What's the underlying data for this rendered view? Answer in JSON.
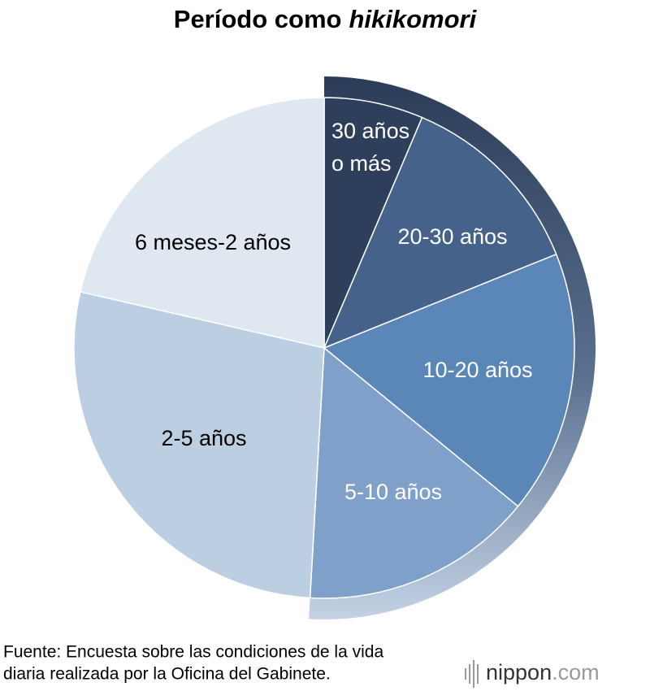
{
  "chart_data": {
    "type": "pie",
    "title": "Período como",
    "title_emphasis": "hikikomori",
    "categories": [
      "30 años\no más",
      "20-30 años",
      "10-20 años",
      "5-10 años",
      "2-5 años",
      "6 meses-2 años"
    ],
    "values": [
      6.4,
      12.5,
      17.0,
      15.0,
      27.7,
      21.4
    ],
    "colors": [
      "#2e3f5c",
      "#45628a",
      "#5b86b8",
      "#7fa0c8",
      "#bccfe2",
      "#dfe7f1"
    ],
    "label_colors": [
      "#ffffff",
      "#ffffff",
      "#ffffff",
      "#ffffff",
      "#000000",
      "#000000"
    ]
  },
  "source": [
    "Fuente: Encuesta sobre las condiciones de la vida",
    "diaria realizada por la Oficina del Gabinete."
  ],
  "logo": {
    "main": "nippon",
    "suffix": ".com"
  }
}
